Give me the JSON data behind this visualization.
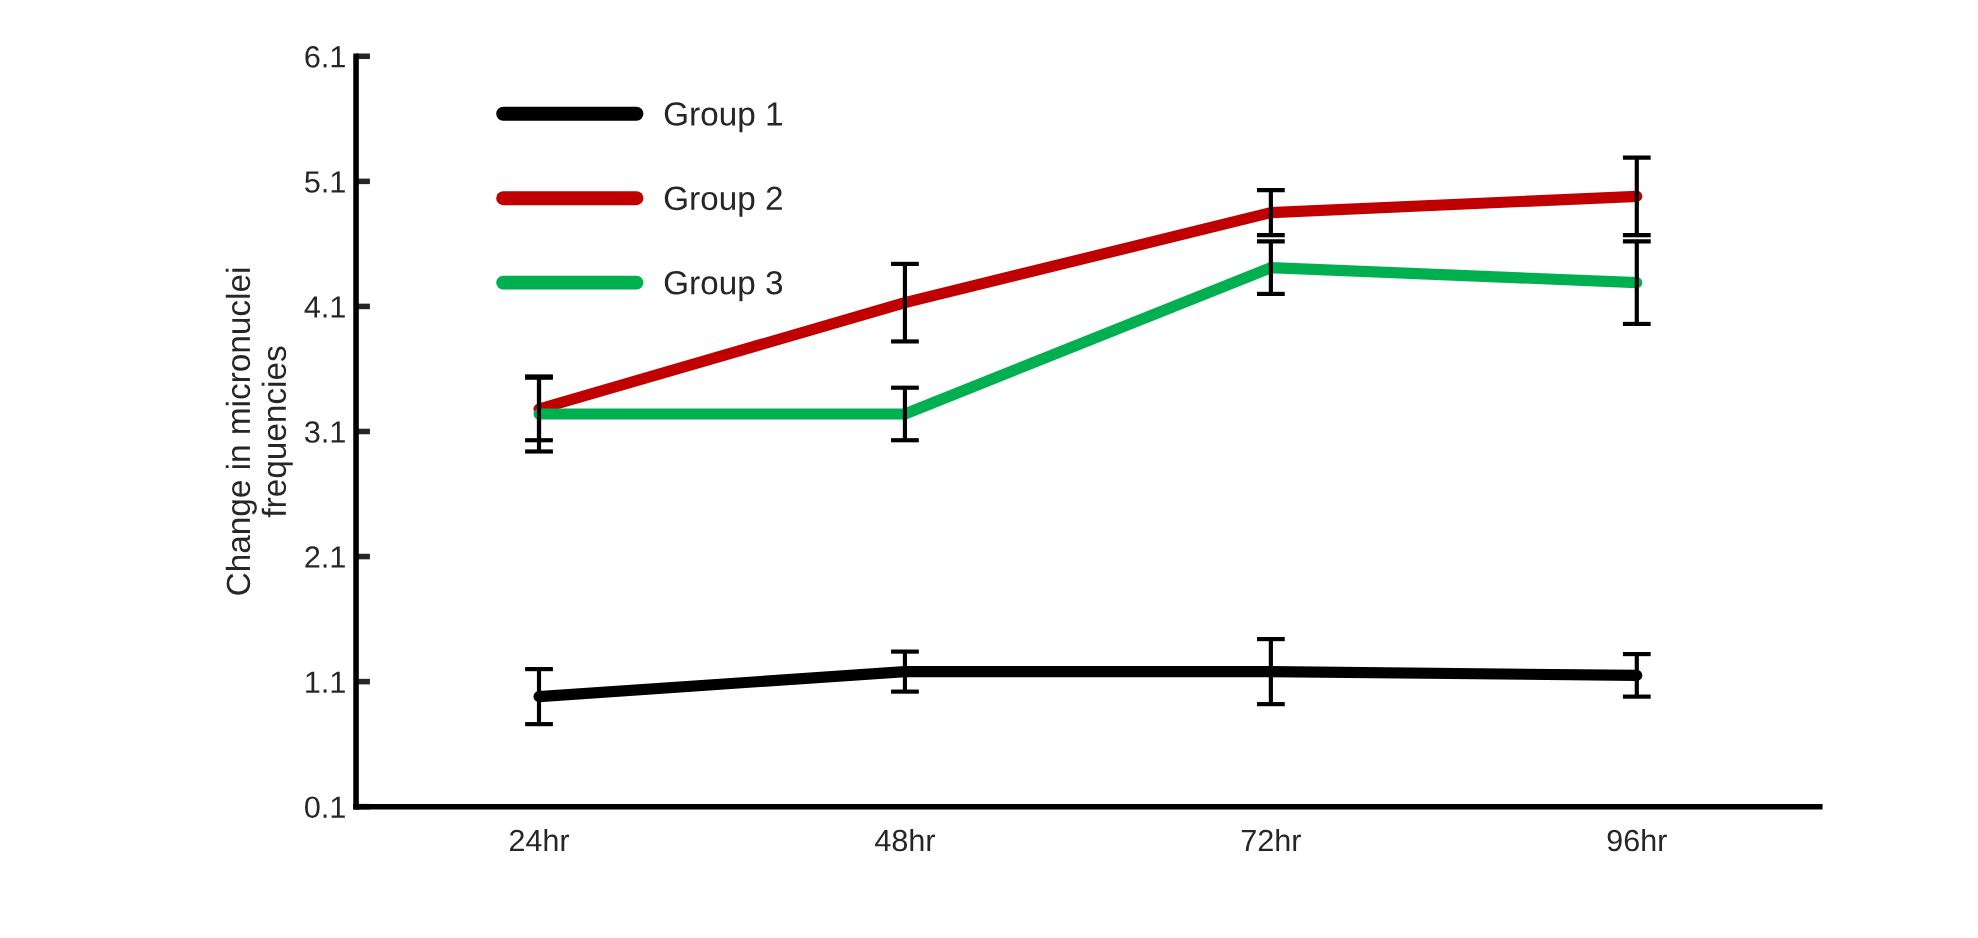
{
  "chart_data": {
    "type": "line",
    "ylabel": "Change in micronuclei\nfrequencies",
    "categories": [
      "24hr",
      "48hr",
      "72hr",
      "96hr"
    ],
    "series": [
      {
        "name": "Group 1",
        "color": "#000000",
        "values": [
          0.98,
          1.18,
          1.18,
          1.15
        ],
        "errors": [
          0.22,
          0.16,
          0.26,
          0.17
        ]
      },
      {
        "name": "Group 2",
        "color": "#c00000",
        "values": [
          3.28,
          4.13,
          4.85,
          4.98
        ],
        "errors": [
          0.25,
          0.31,
          0.18,
          0.31
        ]
      },
      {
        "name": "Group 3",
        "color": "#00b050",
        "values": [
          3.24,
          3.24,
          4.41,
          4.29
        ],
        "errors": [
          0.3,
          0.21,
          0.21,
          0.33
        ]
      }
    ],
    "ylim": [
      0.1,
      6.1
    ],
    "yticks": [
      0.1,
      1.1,
      2.1,
      3.1,
      4.1,
      5.1,
      6.1
    ],
    "grid": false,
    "legend": "top left",
    "marker": "none",
    "line_style": "solid"
  }
}
